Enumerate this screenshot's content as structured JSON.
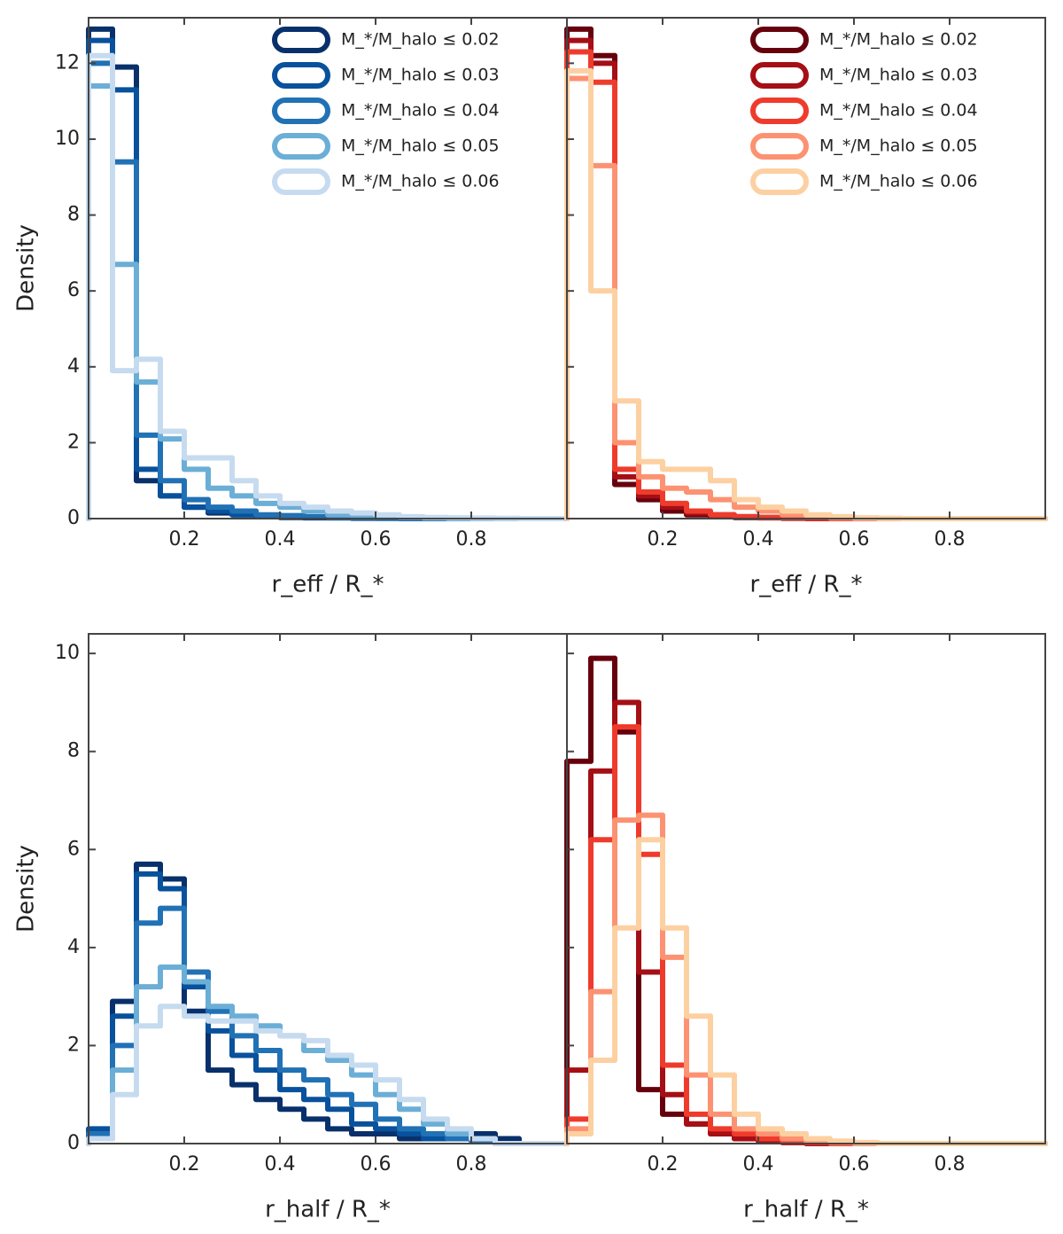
{
  "chart_data": [
    {
      "type": "histogram",
      "ylabel": "Density",
      "xlabel": "r_eff / R_*",
      "bins": [
        0,
        0.05,
        0.1,
        0.15,
        0.2,
        0.25,
        0.3,
        0.35,
        0.4,
        0.45,
        0.5,
        0.55,
        0.6,
        0.65,
        0.7,
        0.75,
        0.8,
        0.85,
        0.9,
        0.95,
        1.0
      ],
      "xlim": [
        0,
        1
      ],
      "xticks": [
        0.2,
        0.4,
        0.6,
        0.8
      ],
      "ylim": [
        0,
        13.2
      ],
      "yticks": [
        0,
        2,
        4,
        6,
        8,
        10,
        12
      ],
      "legend": "upper right",
      "series": [
        {
          "name": "M_*/M_halo ≤ 0.02",
          "color": "#08306b",
          "values": [
            12.9,
            11.9,
            1.0,
            0.6,
            0.3,
            0.15,
            0.1,
            0.05,
            0.03,
            0.02,
            0.02,
            0.01,
            0.01,
            0,
            0,
            0,
            0,
            0,
            0,
            0
          ]
        },
        {
          "name": "M_*/M_halo ≤ 0.03",
          "color": "#08519c",
          "values": [
            12.6,
            11.3,
            1.3,
            0.6,
            0.3,
            0.2,
            0.1,
            0.08,
            0.05,
            0.03,
            0.02,
            0.02,
            0.01,
            0.01,
            0,
            0,
            0,
            0,
            0,
            0
          ]
        },
        {
          "name": "M_*/M_halo ≤ 0.04",
          "color": "#2171b5",
          "values": [
            12.0,
            9.4,
            2.2,
            1.0,
            0.5,
            0.3,
            0.2,
            0.1,
            0.08,
            0.05,
            0.03,
            0.02,
            0.02,
            0.01,
            0.01,
            0,
            0,
            0,
            0,
            0
          ]
        },
        {
          "name": "M_*/M_halo ≤ 0.05",
          "color": "#6baed6",
          "values": [
            11.4,
            6.7,
            3.6,
            2.1,
            1.3,
            0.8,
            0.6,
            0.4,
            0.3,
            0.2,
            0.1,
            0.08,
            0.05,
            0.03,
            0.02,
            0.01,
            0.01,
            0,
            0,
            0
          ]
        },
        {
          "name": "M_*/M_halo ≤ 0.06",
          "color": "#c6dbef",
          "values": [
            12.2,
            3.9,
            4.2,
            2.3,
            1.6,
            1.6,
            1.0,
            0.6,
            0.4,
            0.3,
            0.2,
            0.15,
            0.1,
            0.05,
            0.03,
            0.02,
            0.01,
            0.01,
            0,
            0
          ]
        }
      ]
    },
    {
      "type": "histogram",
      "xlabel": "r_eff / R_*",
      "bins": [
        0,
        0.05,
        0.1,
        0.15,
        0.2,
        0.25,
        0.3,
        0.35,
        0.4,
        0.45,
        0.5,
        0.55,
        0.6,
        0.65,
        0.7,
        0.75,
        0.8,
        0.85,
        0.9,
        0.95,
        1.0
      ],
      "xlim": [
        0,
        1
      ],
      "xticks": [
        0.2,
        0.4,
        0.6,
        0.8
      ],
      "ylim": [
        0,
        13.2
      ],
      "yticks": [
        0,
        2,
        4,
        6,
        8,
        10,
        12
      ],
      "legend": "upper right",
      "series": [
        {
          "name": "M_*/M_halo ≤ 0.02",
          "color": "#67000d",
          "values": [
            12.9,
            12.2,
            0.9,
            0.5,
            0.2,
            0.1,
            0.05,
            0.03,
            0.02,
            0.01,
            0,
            0,
            0,
            0,
            0,
            0,
            0,
            0,
            0,
            0
          ]
        },
        {
          "name": "M_*/M_halo ≤ 0.03",
          "color": "#a50f15",
          "values": [
            12.6,
            12.0,
            1.1,
            0.6,
            0.3,
            0.15,
            0.1,
            0.05,
            0.03,
            0.02,
            0.01,
            0,
            0,
            0,
            0,
            0,
            0,
            0,
            0,
            0
          ]
        },
        {
          "name": "M_*/M_halo ≤ 0.04",
          "color": "#ef3b2c",
          "values": [
            12.3,
            11.5,
            1.3,
            0.7,
            0.4,
            0.2,
            0.1,
            0.05,
            0.03,
            0.02,
            0.01,
            0,
            0,
            0,
            0,
            0,
            0,
            0,
            0,
            0
          ]
        },
        {
          "name": "M_*/M_halo ≤ 0.05",
          "color": "#fc9272",
          "values": [
            11.6,
            9.3,
            2.0,
            1.1,
            0.8,
            0.7,
            0.5,
            0.3,
            0.2,
            0.1,
            0.05,
            0.02,
            0.01,
            0,
            0,
            0,
            0,
            0,
            0,
            0
          ]
        },
        {
          "name": "M_*/M_halo ≤ 0.06",
          "color": "#fdd0a2",
          "values": [
            11.8,
            6.0,
            3.1,
            1.5,
            1.3,
            1.3,
            1.0,
            0.5,
            0.3,
            0.2,
            0.1,
            0.05,
            0.02,
            0.01,
            0,
            0,
            0,
            0,
            0,
            0
          ]
        }
      ]
    },
    {
      "type": "histogram",
      "ylabel": "Density",
      "xlabel": "r_half / R_*",
      "bins": [
        0,
        0.05,
        0.1,
        0.15,
        0.2,
        0.25,
        0.3,
        0.35,
        0.4,
        0.45,
        0.5,
        0.55,
        0.6,
        0.65,
        0.7,
        0.75,
        0.8,
        0.85,
        0.9,
        0.95,
        1.0
      ],
      "xlim": [
        0,
        1
      ],
      "xticks": [
        0.2,
        0.4,
        0.6,
        0.8
      ],
      "ylim": [
        0,
        10.4
      ],
      "yticks": [
        0,
        2,
        4,
        6,
        8,
        10
      ],
      "series": [
        {
          "color": "#08306b",
          "values": [
            0.2,
            2.9,
            5.7,
            5.4,
            2.7,
            1.5,
            1.2,
            0.9,
            0.7,
            0.5,
            0.3,
            0.2,
            0.2,
            0.1,
            0.1,
            0.1,
            0.2,
            0.1,
            0,
            0
          ]
        },
        {
          "color": "#08519c",
          "values": [
            0.3,
            2.6,
            5.5,
            5.2,
            3.2,
            2.3,
            1.8,
            1.5,
            1.1,
            0.9,
            0.7,
            0.4,
            0.3,
            0.2,
            0.1,
            0.1,
            0.1,
            0,
            0,
            0
          ]
        },
        {
          "color": "#2171b5",
          "values": [
            0.2,
            2.0,
            4.5,
            4.8,
            3.5,
            2.7,
            2.2,
            1.9,
            1.5,
            1.3,
            1.0,
            0.8,
            0.5,
            0.3,
            0.2,
            0.1,
            0.05,
            0,
            0,
            0
          ]
        },
        {
          "color": "#6baed6",
          "values": [
            0.1,
            1.5,
            3.2,
            3.6,
            3.3,
            2.8,
            2.6,
            2.4,
            2.2,
            1.9,
            1.7,
            1.4,
            1.0,
            0.7,
            0.4,
            0.2,
            0.1,
            0,
            0,
            0
          ]
        },
        {
          "color": "#c6dbef",
          "values": [
            0.1,
            1.0,
            2.4,
            2.8,
            2.6,
            2.5,
            2.5,
            2.3,
            2.2,
            2.1,
            1.8,
            1.6,
            1.3,
            0.9,
            0.5,
            0.3,
            0.1,
            0,
            0,
            0
          ]
        }
      ]
    },
    {
      "type": "histogram",
      "xlabel": "r_half / R_*",
      "bins": [
        0,
        0.05,
        0.1,
        0.15,
        0.2,
        0.25,
        0.3,
        0.35,
        0.4,
        0.45,
        0.5,
        0.55,
        0.6,
        0.65,
        0.7,
        0.75,
        0.8,
        0.85,
        0.9,
        0.95,
        1.0
      ],
      "xlim": [
        0,
        1
      ],
      "xticks": [
        0.2,
        0.4,
        0.6,
        0.8
      ],
      "ylim": [
        0,
        10.4
      ],
      "yticks": [
        0,
        2,
        4,
        6,
        8,
        10
      ],
      "series": [
        {
          "color": "#67000d",
          "values": [
            7.8,
            9.9,
            8.4,
            1.1,
            0.6,
            0.4,
            0.2,
            0.1,
            0.1,
            0.05,
            0.02,
            0,
            0,
            0,
            0,
            0,
            0,
            0,
            0,
            0
          ]
        },
        {
          "color": "#a50f15",
          "values": [
            1.5,
            7.6,
            9.0,
            3.5,
            1.0,
            0.4,
            0.2,
            0.1,
            0.05,
            0.02,
            0,
            0,
            0,
            0,
            0,
            0,
            0,
            0,
            0,
            0
          ]
        },
        {
          "color": "#ef3b2c",
          "values": [
            0.5,
            6.2,
            8.5,
            5.9,
            1.6,
            0.6,
            0.3,
            0.2,
            0.1,
            0.05,
            0.02,
            0,
            0,
            0,
            0,
            0,
            0,
            0,
            0,
            0
          ]
        },
        {
          "color": "#fc9272",
          "values": [
            0.3,
            3.1,
            6.6,
            6.7,
            3.8,
            1.4,
            0.6,
            0.3,
            0.2,
            0.1,
            0.05,
            0.02,
            0,
            0,
            0,
            0,
            0,
            0,
            0,
            0
          ]
        },
        {
          "color": "#fdd0a2",
          "values": [
            0.2,
            1.7,
            4.4,
            6.2,
            4.4,
            2.6,
            1.4,
            0.6,
            0.3,
            0.2,
            0.1,
            0.05,
            0.02,
            0,
            0,
            0,
            0,
            0,
            0,
            0
          ]
        }
      ]
    }
  ]
}
